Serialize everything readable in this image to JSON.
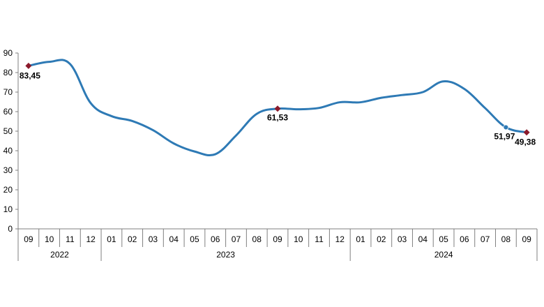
{
  "chart_data": {
    "type": "line",
    "title": "",
    "xlabel": "",
    "ylabel": "",
    "ylim": [
      0,
      90
    ],
    "yticks": [
      0,
      10,
      20,
      30,
      40,
      50,
      60,
      70,
      80,
      90
    ],
    "grid": false,
    "legend": "none",
    "line_color": "#2e7ab5",
    "marker_color": "#8b1a2b",
    "x": [
      "09",
      "10",
      "11",
      "12",
      "01",
      "02",
      "03",
      "04",
      "05",
      "06",
      "07",
      "08",
      "09",
      "10",
      "11",
      "12",
      "01",
      "02",
      "03",
      "04",
      "05",
      "06",
      "07",
      "08",
      "09"
    ],
    "years": [
      {
        "label": "2022",
        "start": 0,
        "end": 3
      },
      {
        "label": "2023",
        "start": 4,
        "end": 15
      },
      {
        "label": "2024",
        "start": 16,
        "end": 24
      }
    ],
    "series": [
      {
        "values": [
          83.45,
          85.5,
          84.4,
          64.3,
          57.7,
          55.2,
          50.5,
          43.7,
          39.6,
          38.2,
          47.8,
          58.9,
          61.53,
          61.2,
          61.9,
          64.8,
          64.8,
          67.1,
          68.5,
          70.0,
          75.5,
          71.6,
          61.8,
          51.97,
          49.38
        ]
      }
    ],
    "data_labels": [
      {
        "index": 0,
        "text": "83,45"
      },
      {
        "index": 12,
        "text": "61,53"
      },
      {
        "index": 23,
        "text": "51,97"
      },
      {
        "index": 24,
        "text": "49,38"
      }
    ]
  }
}
